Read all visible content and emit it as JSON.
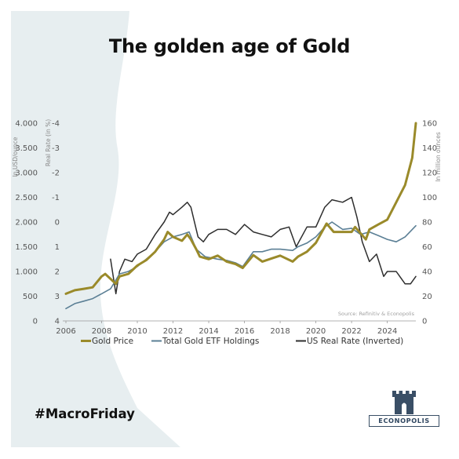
{
  "title": "The golden age of Gold",
  "hashtag": "#MacroFriday",
  "logo": {
    "text": "ECONOPOLIS"
  },
  "colors": {
    "background_shape": "#e7eef0",
    "gold": "#9a8a2a",
    "etf": "#5b7f95",
    "real_rate": "#2e2e2e",
    "logo": "#2f4660"
  },
  "chart_data": {
    "type": "line",
    "source": "Source: Refinitiv & Econopolis",
    "axis_labels": {
      "left_outer": "In USD/ounce",
      "left_inner": "Real Rate (in %)",
      "right": "In million ounces"
    },
    "x_axis": {
      "ticks": [
        "2006",
        "2008",
        "2010",
        "2012",
        "2014",
        "2016",
        "2018",
        "2020",
        "2022",
        "2024"
      ],
      "range": [
        2006,
        2025.6
      ]
    },
    "y_left_outer": {
      "ticks": [
        "0",
        "500",
        "1.000",
        "1.500",
        "2.000",
        "2.500",
        "3.000",
        "3.500",
        "4.000"
      ],
      "range": [
        0,
        4000
      ]
    },
    "y_left_inner": {
      "ticks": [
        "4",
        "3",
        "2",
        "1",
        "0",
        "-1",
        "-2",
        "-3",
        "-4"
      ],
      "range": [
        4,
        -4
      ],
      "inverted": true
    },
    "y_right": {
      "ticks": [
        "0",
        "20",
        "40",
        "60",
        "80",
        "100",
        "120",
        "140",
        "160"
      ],
      "range": [
        0,
        160
      ]
    },
    "legend": [
      "Gold Price",
      "Total Gold ETF Holdings",
      "US Real Rate (Inverted)"
    ],
    "legend_position": "bottom",
    "series": [
      {
        "name": "Gold Price",
        "axis": "left_outer",
        "x": [
          2006.0,
          2006.5,
          2007.0,
          2007.5,
          2008.0,
          2008.2,
          2008.8,
          2009.0,
          2009.5,
          2010.0,
          2010.5,
          2011.0,
          2011.5,
          2011.7,
          2012.0,
          2012.5,
          2012.8,
          2013.0,
          2013.3,
          2013.5,
          2014.0,
          2014.5,
          2015.0,
          2015.5,
          2015.9,
          2016.5,
          2017.0,
          2017.5,
          2018.0,
          2018.7,
          2019.0,
          2019.5,
          2020.0,
          2020.6,
          2021.0,
          2021.5,
          2022.0,
          2022.2,
          2022.8,
          2023.0,
          2023.5,
          2024.0,
          2024.5,
          2025.0,
          2025.4,
          2025.6
        ],
        "y": [
          550,
          620,
          650,
          680,
          900,
          950,
          750,
          900,
          950,
          1120,
          1230,
          1400,
          1650,
          1800,
          1700,
          1620,
          1750,
          1650,
          1450,
          1300,
          1250,
          1320,
          1200,
          1150,
          1070,
          1330,
          1200,
          1260,
          1320,
          1200,
          1300,
          1400,
          1580,
          1970,
          1800,
          1800,
          1800,
          1900,
          1650,
          1850,
          1950,
          2050,
          2400,
          2750,
          3300,
          4000
        ]
      },
      {
        "name": "Total Gold ETF Holdings",
        "axis": "right",
        "x": [
          2006.0,
          2006.5,
          2007.0,
          2007.5,
          2008.0,
          2008.5,
          2009.0,
          2009.5,
          2010.0,
          2010.5,
          2011.0,
          2011.5,
          2012.0,
          2012.5,
          2012.9,
          2013.3,
          2013.8,
          2014.5,
          2015.0,
          2015.5,
          2015.9,
          2016.5,
          2017.0,
          2017.5,
          2018.0,
          2018.7,
          2019.0,
          2019.5,
          2020.0,
          2020.5,
          2020.9,
          2021.5,
          2022.0,
          2022.5,
          2023.0,
          2023.5,
          2024.0,
          2024.5,
          2025.0,
          2025.6
        ],
        "y": [
          10,
          14,
          16,
          18,
          22,
          26,
          38,
          40,
          44,
          50,
          56,
          64,
          68,
          70,
          72,
          58,
          52,
          50,
          49,
          47,
          44,
          56,
          56,
          58,
          58,
          57,
          60,
          63,
          68,
          76,
          80,
          74,
          75,
          70,
          72,
          69,
          66,
          64,
          68,
          77
        ]
      },
      {
        "name": "US Real Rate (Inverted)",
        "axis": "left_inner",
        "x": [
          2008.5,
          2008.8,
          2009.0,
          2009.3,
          2009.7,
          2010.0,
          2010.5,
          2011.0,
          2011.5,
          2011.8,
          2012.0,
          2012.5,
          2012.8,
          2013.0,
          2013.4,
          2013.7,
          2014.0,
          2014.5,
          2015.0,
          2015.5,
          2016.0,
          2016.5,
          2017.0,
          2017.5,
          2018.0,
          2018.5,
          2018.9,
          2019.5,
          2020.0,
          2020.5,
          2020.9,
          2021.5,
          2022.0,
          2022.3,
          2022.6,
          2023.0,
          2023.4,
          2023.8,
          2024.0,
          2024.5,
          2025.0,
          2025.3,
          2025.6
        ],
        "y": [
          1.5,
          2.9,
          2.0,
          1.5,
          1.6,
          1.3,
          1.1,
          0.5,
          0.0,
          -0.4,
          -0.3,
          -0.6,
          -0.8,
          -0.6,
          0.6,
          0.8,
          0.5,
          0.3,
          0.3,
          0.5,
          0.1,
          0.4,
          0.5,
          0.6,
          0.3,
          0.2,
          1.0,
          0.2,
          0.2,
          -0.6,
          -0.9,
          -0.8,
          -1.0,
          -0.2,
          0.8,
          1.6,
          1.3,
          2.2,
          2.0,
          2.0,
          2.5,
          2.5,
          2.2
        ]
      }
    ]
  }
}
